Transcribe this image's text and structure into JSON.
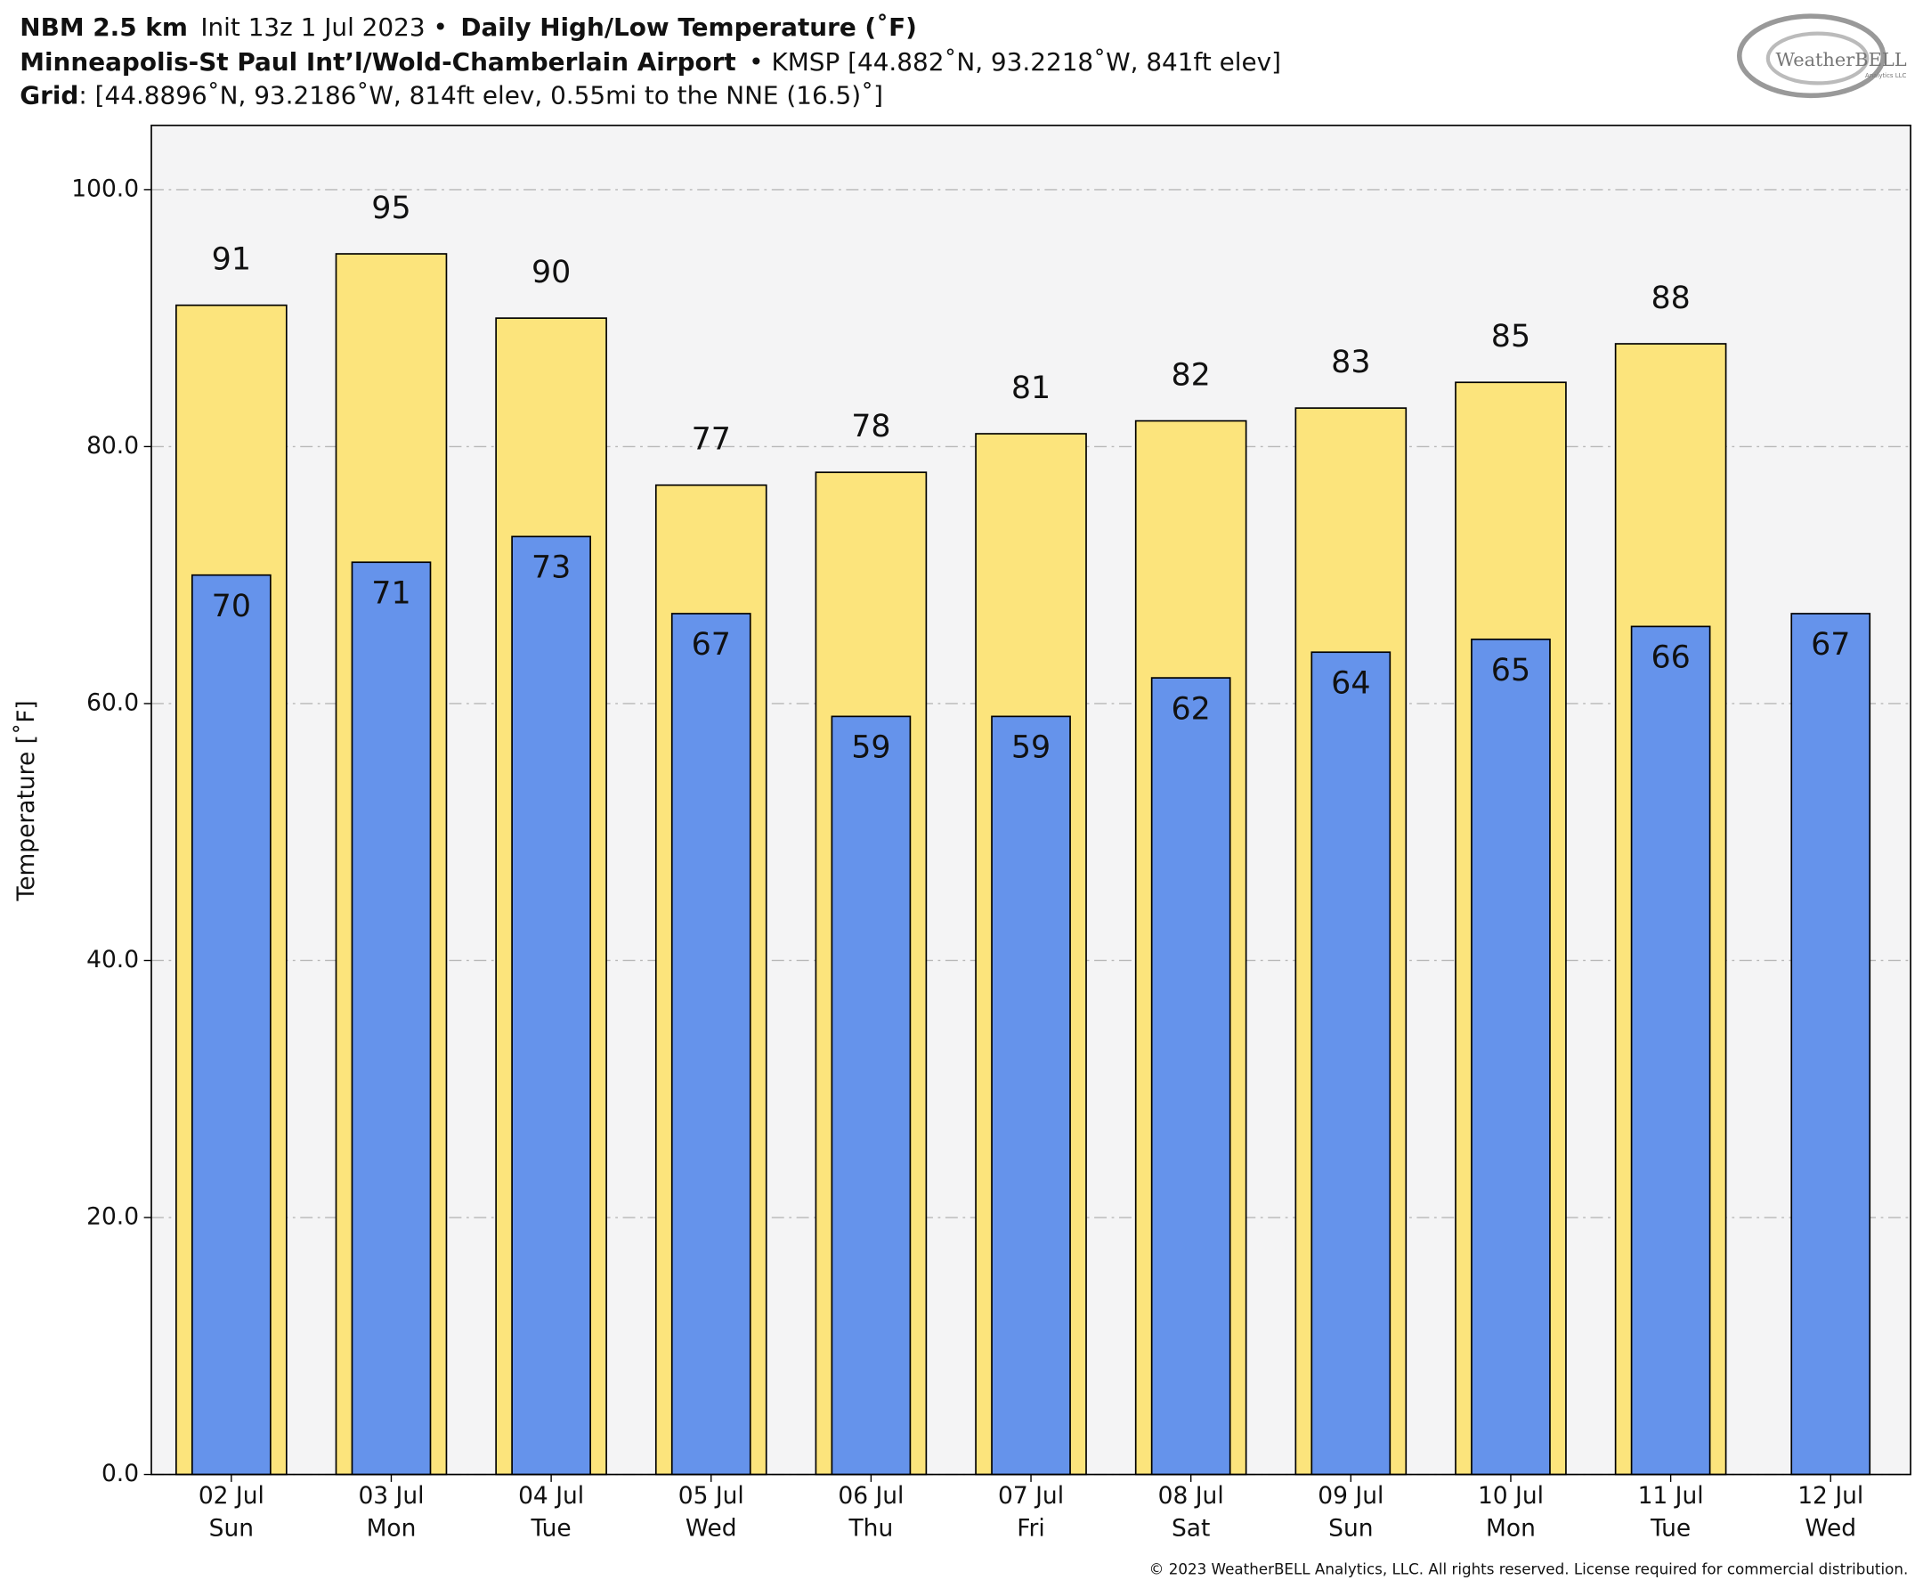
{
  "header": {
    "model": "NBM 2.5 km",
    "init": "Init 13z 1 Jul 2023 •",
    "product": "Daily High/Low Temperature (˚F)",
    "station": "Minneapolis-St Paul Int’l/Wold-Chamberlain Airport",
    "station_info": "• KMSP [44.882˚N, 93.2218˚W, 841ft elev]",
    "grid_label": "Grid",
    "grid_info": ": [44.8896˚N, 93.2186˚W, 814ft elev, 0.55mi to the NNE (16.5)˚]",
    "logo": "WeatherBELL",
    "logo_sub": "Analytics LLC"
  },
  "footer": "© 2023 WeatherBELL Analytics, LLC. All rights reserved. License required for commercial distribution.",
  "chart_data": {
    "type": "bar",
    "y_label": "Temperature [˚F]",
    "categories": [
      "02 Jul",
      "03 Jul",
      "04 Jul",
      "05 Jul",
      "06 Jul",
      "07 Jul",
      "08 Jul",
      "09 Jul",
      "10 Jul",
      "11 Jul",
      "12 Jul"
    ],
    "category_days": [
      "Sun",
      "Mon",
      "Tue",
      "Wed",
      "Thu",
      "Fri",
      "Sat",
      "Sun",
      "Mon",
      "Tue",
      "Wed"
    ],
    "series": [
      {
        "color": "#fce47c",
        "values": [
          91,
          95,
          90,
          77,
          78,
          81,
          82,
          83,
          85,
          88,
          null
        ]
      },
      {
        "color": "#6593eb",
        "values": [
          70,
          71,
          73,
          67,
          59,
          59,
          62,
          64,
          65,
          66,
          67
        ]
      }
    ],
    "ylim": [
      0,
      105
    ],
    "yticks": [
      {
        "value": 0,
        "label": "0.0"
      },
      {
        "value": 20,
        "label": "20.0"
      },
      {
        "value": 40,
        "label": "40.0"
      },
      {
        "value": 60,
        "label": "60.0"
      },
      {
        "value": 80,
        "label": "80.0"
      },
      {
        "value": 100,
        "label": "100.0"
      }
    ],
    "grid": true
  }
}
